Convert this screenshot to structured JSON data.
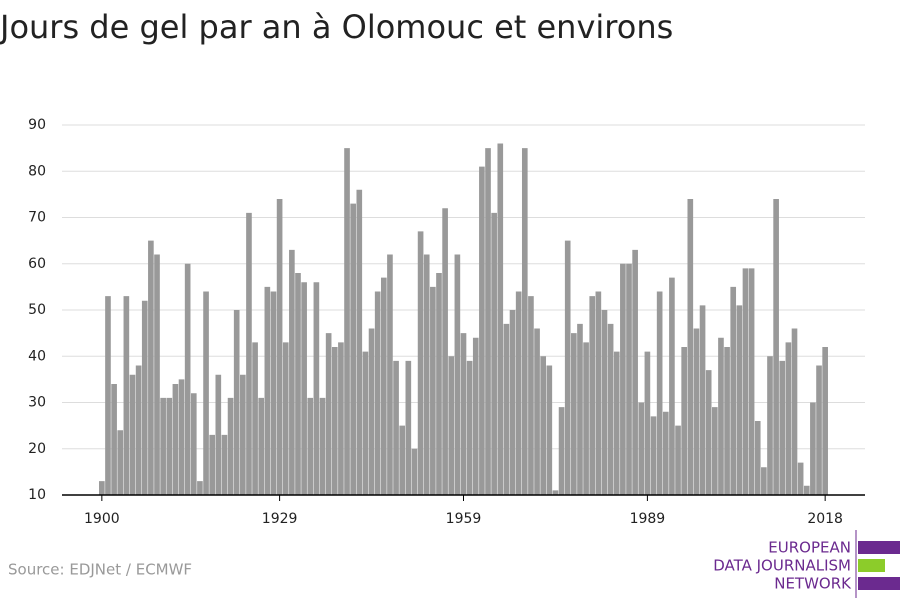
{
  "chart_data": {
    "type": "bar",
    "title": "Jours de gel par an à Olomouc et environs",
    "x": [
      1900,
      1901,
      1902,
      1903,
      1904,
      1905,
      1906,
      1907,
      1908,
      1909,
      1910,
      1911,
      1912,
      1913,
      1914,
      1915,
      1916,
      1917,
      1918,
      1919,
      1920,
      1921,
      1922,
      1923,
      1924,
      1925,
      1926,
      1927,
      1928,
      1929,
      1930,
      1931,
      1932,
      1933,
      1934,
      1935,
      1936,
      1937,
      1938,
      1939,
      1940,
      1941,
      1942,
      1943,
      1944,
      1945,
      1946,
      1947,
      1948,
      1949,
      1950,
      1951,
      1952,
      1953,
      1954,
      1955,
      1956,
      1957,
      1958,
      1959,
      1960,
      1961,
      1962,
      1963,
      1964,
      1965,
      1966,
      1967,
      1968,
      1969,
      1970,
      1971,
      1972,
      1973,
      1974,
      1975,
      1976,
      1977,
      1978,
      1979,
      1980,
      1981,
      1982,
      1983,
      1984,
      1985,
      1986,
      1987,
      1988,
      1989,
      1990,
      1991,
      1992,
      1993,
      1994,
      1995,
      1996,
      1997,
      1998,
      1999,
      2000,
      2001,
      2002,
      2003,
      2004,
      2005,
      2006,
      2007,
      2008,
      2009,
      2010,
      2011,
      2012,
      2013,
      2014,
      2015,
      2016,
      2017,
      2018
    ],
    "values": [
      13,
      53,
      34,
      24,
      53,
      36,
      38,
      52,
      65,
      62,
      31,
      31,
      34,
      35,
      60,
      32,
      13,
      54,
      23,
      36,
      23,
      31,
      50,
      36,
      71,
      43,
      31,
      55,
      54,
      74,
      43,
      63,
      58,
      56,
      31,
      56,
      31,
      45,
      42,
      43,
      85,
      73,
      76,
      41,
      46,
      54,
      57,
      62,
      39,
      25,
      39,
      20,
      67,
      62,
      55,
      58,
      72,
      40,
      62,
      45,
      39,
      44,
      81,
      85,
      71,
      86,
      47,
      50,
      54,
      85,
      53,
      46,
      40,
      38,
      11,
      29,
      65,
      45,
      47,
      43,
      53,
      54,
      50,
      47,
      41,
      60,
      60,
      63,
      30,
      41,
      27,
      54,
      28,
      57,
      25,
      42,
      74,
      46,
      51,
      37,
      29,
      44,
      42,
      55,
      51,
      59,
      59,
      26,
      16,
      40,
      74,
      39,
      43,
      46,
      17,
      12,
      30,
      38,
      42
    ],
    "color": "#999999",
    "xlim": [
      1893.5,
      2024.5
    ],
    "xticks": [
      1900,
      1929,
      1959,
      1989,
      2018
    ],
    "ylim": [
      10,
      90
    ],
    "yticks": [
      10,
      20,
      30,
      40,
      50,
      60,
      70,
      80,
      90
    ],
    "grid": true,
    "source": "Source: EDJNet / ECMWF",
    "logo": [
      "EUROPEAN",
      "DATA JOURNALISM",
      "NETWORK"
    ]
  }
}
